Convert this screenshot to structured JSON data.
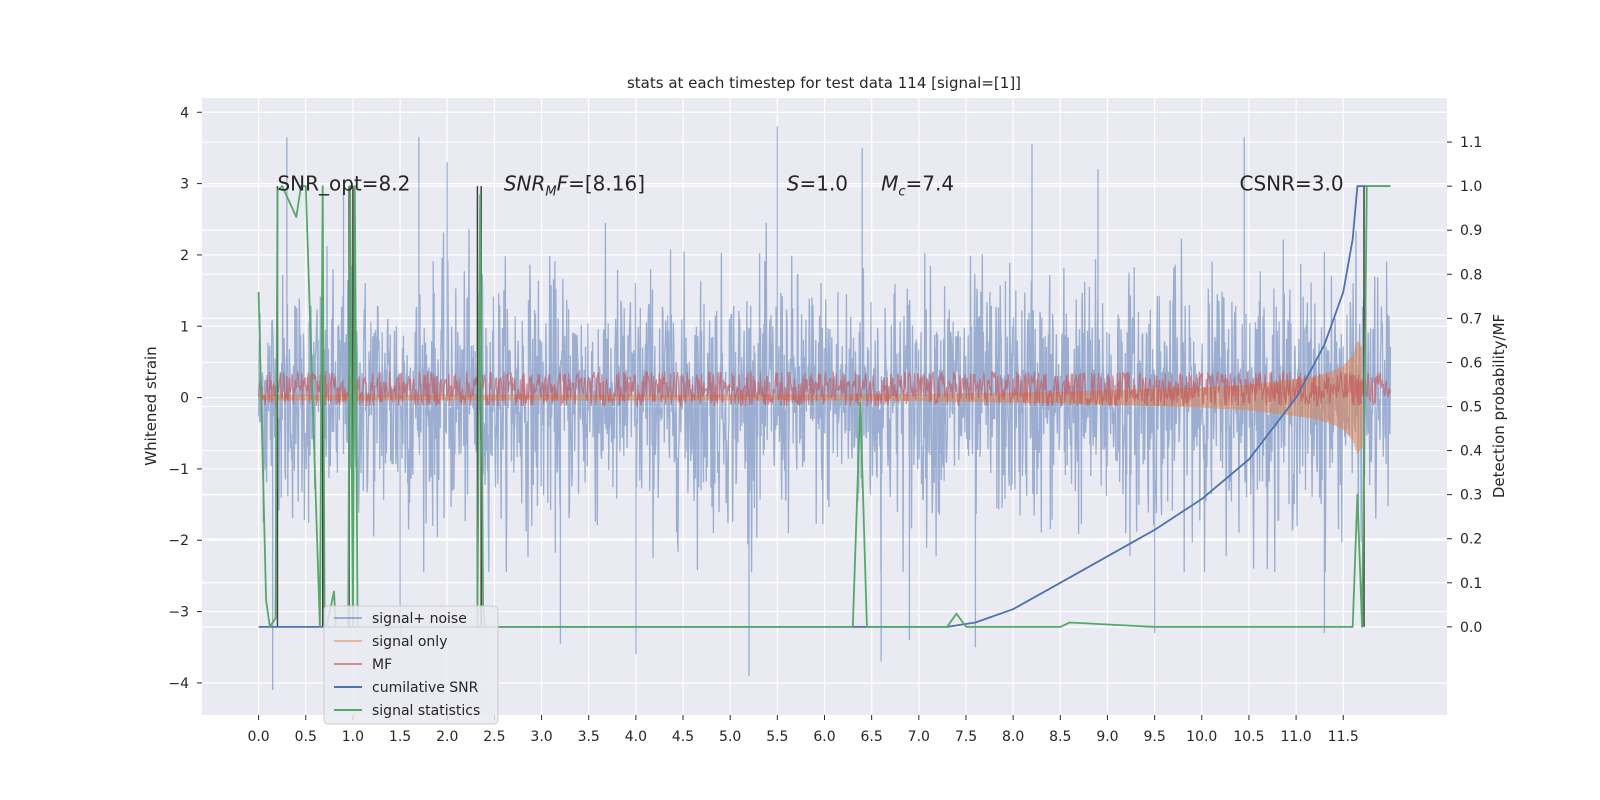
{
  "chart_data": {
    "type": "line",
    "title": "stats at each timestep for test data 114 [signal=[1]]",
    "xlabel": "",
    "ylabel": "Whitened strain",
    "ylabel_right": "Detection probability/MF",
    "xlim": [
      -0.6,
      12.6
    ],
    "ylim": [
      -4.45,
      4.2
    ],
    "ylim_right": [
      -0.2,
      1.2
    ],
    "x_ticks": [
      "0.0",
      "0.5",
      "1.0",
      "1.5",
      "2.0",
      "2.5",
      "3.0",
      "3.5",
      "4.0",
      "4.5",
      "5.0",
      "5.5",
      "6.0",
      "6.5",
      "7.0",
      "7.5",
      "8.0",
      "8.5",
      "9.0",
      "9.5",
      "10.0",
      "10.5",
      "11.0",
      "11.5"
    ],
    "y_ticks": [
      "−4",
      "−3",
      "−2",
      "−1",
      "0",
      "1",
      "2",
      "3",
      "4"
    ],
    "y_ticks_right": [
      "0.0",
      "0.1",
      "0.2",
      "0.3",
      "0.4",
      "0.5",
      "0.6",
      "0.7",
      "0.8",
      "0.9",
      "1.0",
      "1.1"
    ],
    "grid": true,
    "legend_position": "lower-left",
    "annotations": [
      {
        "x": 0.2,
        "y": 3.0,
        "parts": [
          {
            "t": "SNR_opt=8.2",
            "i": false
          }
        ]
      },
      {
        "x": 2.6,
        "y": 3.0,
        "parts": [
          {
            "t": "SNR",
            "i": true
          },
          {
            "t": "M",
            "i": true,
            "sub": true
          },
          {
            "t": "F",
            "i": true
          },
          {
            "t": "=[8.16]",
            "i": false
          }
        ]
      },
      {
        "x": 5.6,
        "y": 3.0,
        "parts": [
          {
            "t": "S",
            "i": true
          },
          {
            "t": "=1.0",
            "i": false
          }
        ]
      },
      {
        "x": 6.6,
        "y": 3.0,
        "parts": [
          {
            "t": "M",
            "i": true
          },
          {
            "t": "c",
            "i": true,
            "sub": true
          },
          {
            "t": "=7.4",
            "i": false
          }
        ]
      },
      {
        "x": 10.4,
        "y": 3.0,
        "parts": [
          {
            "t": "CSNR=3.0",
            "i": false
          }
        ]
      }
    ],
    "series": [
      {
        "name": "signal+ noise",
        "axis": "left",
        "color": "#4c72b0",
        "kind": "noise-band",
        "x_range": [
          0.0,
          12.0
        ],
        "envelope": [
          -2.2,
          2.3
        ],
        "spike_points": [
          [
            0.15,
            -4.1
          ],
          [
            0.3,
            3.65
          ],
          [
            0.9,
            2.9
          ],
          [
            1.5,
            -3.4
          ],
          [
            1.7,
            3.65
          ],
          [
            2.0,
            3.3
          ],
          [
            3.2,
            -3.45
          ],
          [
            4.0,
            -3.6
          ],
          [
            5.2,
            -3.9
          ],
          [
            5.5,
            3.8
          ],
          [
            6.4,
            3.5
          ],
          [
            6.6,
            -3.7
          ],
          [
            6.9,
            -3.4
          ],
          [
            7.6,
            -3.5
          ],
          [
            8.2,
            3.55
          ],
          [
            8.9,
            3.2
          ],
          [
            9.5,
            -3.3
          ],
          [
            10.45,
            3.65
          ],
          [
            11.3,
            -3.3
          ]
        ]
      },
      {
        "name": "signal only",
        "axis": "left",
        "color": "#dd8452",
        "kind": "chirp",
        "x": [
          0.0,
          6.0,
          7.0,
          8.0,
          8.5,
          9.0,
          9.5,
          10.0,
          10.5,
          11.0,
          11.2,
          11.4,
          11.5,
          11.6,
          11.65,
          11.7
        ],
        "amplitude": [
          0.04,
          0.04,
          0.05,
          0.07,
          0.08,
          0.1,
          0.12,
          0.14,
          0.18,
          0.26,
          0.3,
          0.38,
          0.45,
          0.6,
          0.8,
          0.7
        ]
      },
      {
        "name": "MF",
        "axis": "right",
        "color": "#c44e52",
        "kind": "noise-band",
        "x_range": [
          0.0,
          12.0
        ],
        "envelope": [
          0.5,
          0.58
        ]
      },
      {
        "name": "cumilative SNR",
        "axis": "right",
        "color": "#4c72b0",
        "x": [
          0.0,
          7.3,
          7.6,
          8.0,
          8.5,
          9.0,
          9.5,
          10.0,
          10.5,
          11.0,
          11.3,
          11.5,
          11.6,
          11.65,
          12.0
        ],
        "y": [
          0.0,
          0.0,
          0.01,
          0.04,
          0.1,
          0.16,
          0.22,
          0.29,
          0.38,
          0.52,
          0.64,
          0.76,
          0.88,
          1.0,
          1.0
        ]
      },
      {
        "name": "signal statistics",
        "axis": "right",
        "color": "#55a868",
        "x": [
          0.0,
          0.08,
          0.12,
          0.18,
          0.2,
          0.25,
          0.4,
          0.45,
          0.5,
          0.65,
          0.68,
          0.7,
          0.72,
          0.8,
          0.82,
          0.95,
          0.97,
          1.0,
          1.02,
          1.05,
          2.32,
          2.35,
          2.38,
          2.4,
          2.5,
          6.3,
          6.38,
          6.45,
          7.3,
          7.4,
          7.5,
          8.5,
          8.6,
          9.5,
          11.6,
          11.65,
          11.7,
          11.75,
          11.8,
          12.0
        ],
        "y": [
          0.76,
          0.06,
          0.0,
          0.02,
          0.99,
          1.0,
          0.93,
          1.0,
          1.0,
          0.0,
          1.0,
          0.0,
          0.0,
          0.08,
          0.0,
          0.0,
          1.0,
          0.0,
          1.0,
          0.0,
          0.0,
          0.98,
          0.05,
          0.0,
          0.0,
          0.0,
          0.51,
          0.0,
          0.0,
          0.03,
          0.0,
          0.0,
          0.01,
          0.0,
          0.0,
          0.3,
          0.0,
          1.0,
          1.0,
          1.0
        ]
      },
      {
        "name": "",
        "axis": "right",
        "color": "#404040",
        "kind": "vlines",
        "xs": [
          0.2,
          0.68,
          0.96,
          1.0,
          2.32,
          2.36,
          11.72
        ],
        "ranges": [
          [
            0.0,
            1.0
          ],
          [
            0.0,
            1.0
          ],
          [
            0.0,
            1.0
          ],
          [
            0.0,
            1.0
          ],
          [
            0.0,
            1.0
          ],
          [
            0.0,
            1.0
          ],
          [
            0.0,
            1.0
          ]
        ]
      }
    ],
    "legend": [
      {
        "label": "signal+ noise",
        "color": "#4c72b0",
        "alpha": 0.5
      },
      {
        "label": "signal only",
        "color": "#dd8452",
        "alpha": 0.5
      },
      {
        "label": "MF",
        "color": "#c44e52",
        "alpha": 0.6
      },
      {
        "label": "cumilative SNR",
        "color": "#4c72b0",
        "alpha": 1
      },
      {
        "label": "signal statistics",
        "color": "#55a868",
        "alpha": 1
      }
    ]
  }
}
